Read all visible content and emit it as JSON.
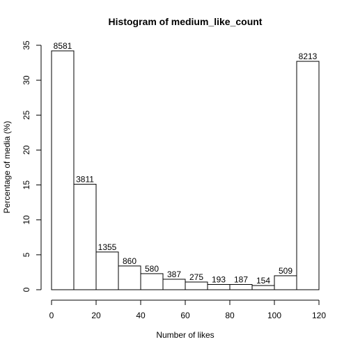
{
  "chart_data": {
    "type": "bar",
    "title": "Histogram of medium_like_count",
    "xlabel": "Number of likes",
    "ylabel": "Percentage of media (%)",
    "bins": [
      {
        "x0": 0,
        "x1": 10,
        "percent": 34.2,
        "count": "8581"
      },
      {
        "x0": 10,
        "x1": 20,
        "percent": 15.1,
        "count": "3811"
      },
      {
        "x0": 20,
        "x1": 30,
        "percent": 5.4,
        "count": "1355"
      },
      {
        "x0": 30,
        "x1": 40,
        "percent": 3.4,
        "count": "860"
      },
      {
        "x0": 40,
        "x1": 50,
        "percent": 2.3,
        "count": "580"
      },
      {
        "x0": 50,
        "x1": 60,
        "percent": 1.5,
        "count": "387"
      },
      {
        "x0": 60,
        "x1": 70,
        "percent": 1.1,
        "count": "275"
      },
      {
        "x0": 70,
        "x1": 80,
        "percent": 0.75,
        "count": "193"
      },
      {
        "x0": 80,
        "x1": 90,
        "percent": 0.75,
        "count": "187"
      },
      {
        "x0": 90,
        "x1": 100,
        "percent": 0.6,
        "count": "154"
      },
      {
        "x0": 100,
        "x1": 110,
        "percent": 2.0,
        "count": "509"
      },
      {
        "x0": 110,
        "x1": 120,
        "percent": 32.7,
        "count": "8213"
      }
    ],
    "xlim": [
      0,
      120
    ],
    "ylim": [
      0,
      35
    ],
    "xticks": [
      "0",
      "20",
      "40",
      "60",
      "80",
      "100",
      "120"
    ],
    "yticks": [
      "0",
      "5",
      "10",
      "15",
      "20",
      "25",
      "30",
      "35"
    ],
    "grid": false,
    "legend": "none"
  }
}
